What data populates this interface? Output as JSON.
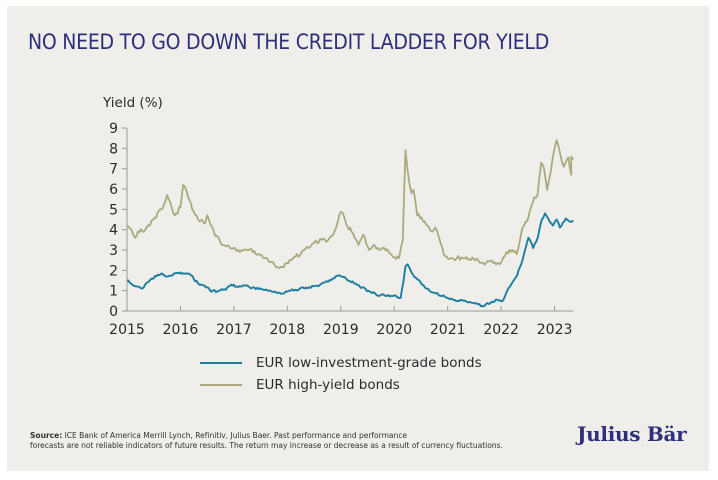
{
  "header": {
    "title": "NO NEED TO GO DOWN THE CREDIT LADDER FOR YIELD"
  },
  "footer": {
    "source_label": "Source:",
    "source_text_line1": "ICE Bank of America Merrill Lynch, Refinitiv, Julius Baer. Past performance and performance",
    "source_text_line2": "forecasts are not reliable indicators of future results. The return may increase or decrease as a result of currency fluctuations."
  },
  "brand": {
    "logo_text": "Julius Bär",
    "color": "#2e2f7c"
  },
  "chart_data": {
    "type": "line",
    "title": "NO NEED TO GO DOWN THE CREDIT LADDER FOR YIELD",
    "xlabel": "",
    "ylabel": "Yield (%)",
    "xlim": [
      2015,
      2023.35
    ],
    "ylim": [
      0,
      9
    ],
    "xticks": [
      2015,
      2016,
      2017,
      2018,
      2019,
      2020,
      2021,
      2022,
      2023
    ],
    "xtick_labels": [
      "2015",
      "2016",
      "2017",
      "2018",
      "2019",
      "2020",
      "2021",
      "2022",
      "2023"
    ],
    "yticks": [
      0,
      1,
      2,
      3,
      4,
      5,
      6,
      7,
      8,
      9
    ],
    "ytick_labels": [
      "0",
      "1",
      "2",
      "3",
      "4",
      "5",
      "6",
      "7",
      "8",
      "9"
    ],
    "grid": false,
    "legend_position": "bottom",
    "series": [
      {
        "name": "EUR low-investment-grade bonds",
        "color": "#1a7fa0",
        "points": [
          [
            2015.0,
            1.5
          ],
          [
            2015.1,
            1.3
          ],
          [
            2015.2,
            1.2
          ],
          [
            2015.28,
            1.1
          ],
          [
            2015.35,
            1.35
          ],
          [
            2015.47,
            1.6
          ],
          [
            2015.55,
            1.7
          ],
          [
            2015.65,
            1.85
          ],
          [
            2015.77,
            1.7
          ],
          [
            2015.88,
            1.85
          ],
          [
            2016.0,
            1.9
          ],
          [
            2016.1,
            1.85
          ],
          [
            2016.2,
            1.75
          ],
          [
            2016.33,
            1.35
          ],
          [
            2016.45,
            1.25
          ],
          [
            2016.58,
            0.95
          ],
          [
            2016.72,
            1.0
          ],
          [
            2016.85,
            1.05
          ],
          [
            2016.95,
            1.3
          ],
          [
            2017.05,
            1.2
          ],
          [
            2017.2,
            1.25
          ],
          [
            2017.35,
            1.15
          ],
          [
            2017.55,
            1.05
          ],
          [
            2017.75,
            0.95
          ],
          [
            2017.88,
            0.85
          ],
          [
            2018.0,
            0.95
          ],
          [
            2018.15,
            1.05
          ],
          [
            2018.35,
            1.15
          ],
          [
            2018.55,
            1.25
          ],
          [
            2018.7,
            1.4
          ],
          [
            2018.85,
            1.6
          ],
          [
            2018.98,
            1.75
          ],
          [
            2019.1,
            1.6
          ],
          [
            2019.25,
            1.35
          ],
          [
            2019.4,
            1.15
          ],
          [
            2019.55,
            0.95
          ],
          [
            2019.7,
            0.75
          ],
          [
            2019.8,
            0.8
          ],
          [
            2019.95,
            0.75
          ],
          [
            2020.05,
            0.7
          ],
          [
            2020.12,
            0.65
          ],
          [
            2020.17,
            1.4
          ],
          [
            2020.21,
            2.2
          ],
          [
            2020.25,
            2.3
          ],
          [
            2020.32,
            1.9
          ],
          [
            2020.4,
            1.65
          ],
          [
            2020.47,
            1.5
          ],
          [
            2020.6,
            1.1
          ],
          [
            2020.75,
            0.9
          ],
          [
            2020.95,
            0.7
          ],
          [
            2021.1,
            0.55
          ],
          [
            2021.3,
            0.5
          ],
          [
            2021.48,
            0.4
          ],
          [
            2021.65,
            0.25
          ],
          [
            2021.8,
            0.4
          ],
          [
            2021.93,
            0.55
          ],
          [
            2022.03,
            0.5
          ],
          [
            2022.12,
            1.05
          ],
          [
            2022.21,
            1.4
          ],
          [
            2022.3,
            1.75
          ],
          [
            2022.4,
            2.5
          ],
          [
            2022.51,
            3.6
          ],
          [
            2022.6,
            3.1
          ],
          [
            2022.69,
            3.65
          ],
          [
            2022.76,
            4.5
          ],
          [
            2022.82,
            4.8
          ],
          [
            2022.88,
            4.55
          ],
          [
            2022.97,
            4.2
          ],
          [
            2023.04,
            4.5
          ],
          [
            2023.1,
            4.1
          ],
          [
            2023.21,
            4.55
          ],
          [
            2023.28,
            4.4
          ],
          [
            2023.35,
            4.45
          ]
        ]
      },
      {
        "name": "EUR high-yield bonds",
        "color": "#a9ab7e",
        "points": [
          [
            2015.0,
            4.2
          ],
          [
            2015.08,
            4.0
          ],
          [
            2015.15,
            3.6
          ],
          [
            2015.2,
            3.9
          ],
          [
            2015.34,
            4.0
          ],
          [
            2015.52,
            4.6
          ],
          [
            2015.65,
            5.0
          ],
          [
            2015.75,
            5.7
          ],
          [
            2015.9,
            4.7
          ],
          [
            2016.0,
            5.1
          ],
          [
            2016.05,
            6.2
          ],
          [
            2016.12,
            5.85
          ],
          [
            2016.22,
            5.0
          ],
          [
            2016.33,
            4.5
          ],
          [
            2016.46,
            4.3
          ],
          [
            2016.5,
            4.7
          ],
          [
            2016.65,
            3.7
          ],
          [
            2016.8,
            3.25
          ],
          [
            2016.93,
            3.1
          ],
          [
            2017.11,
            2.9
          ],
          [
            2017.3,
            3.05
          ],
          [
            2017.49,
            2.75
          ],
          [
            2017.68,
            2.4
          ],
          [
            2017.85,
            2.1
          ],
          [
            2018.07,
            2.5
          ],
          [
            2018.26,
            2.85
          ],
          [
            2018.45,
            3.25
          ],
          [
            2018.64,
            3.5
          ],
          [
            2018.73,
            3.4
          ],
          [
            2018.88,
            3.9
          ],
          [
            2018.97,
            4.7
          ],
          [
            2019.03,
            4.85
          ],
          [
            2019.1,
            4.3
          ],
          [
            2019.2,
            3.9
          ],
          [
            2019.33,
            3.25
          ],
          [
            2019.42,
            3.75
          ],
          [
            2019.53,
            3.0
          ],
          [
            2019.61,
            3.25
          ],
          [
            2019.72,
            3.0
          ],
          [
            2019.81,
            3.1
          ],
          [
            2019.98,
            2.65
          ],
          [
            2020.09,
            2.6
          ],
          [
            2020.16,
            3.5
          ],
          [
            2020.21,
            7.9
          ],
          [
            2020.25,
            6.9
          ],
          [
            2020.32,
            5.8
          ],
          [
            2020.36,
            5.95
          ],
          [
            2020.43,
            4.7
          ],
          [
            2020.51,
            4.6
          ],
          [
            2020.62,
            4.2
          ],
          [
            2020.71,
            3.9
          ],
          [
            2020.77,
            4.1
          ],
          [
            2020.84,
            3.6
          ],
          [
            2020.93,
            2.75
          ],
          [
            2021.06,
            2.6
          ],
          [
            2021.17,
            2.6
          ],
          [
            2021.35,
            2.65
          ],
          [
            2021.57,
            2.5
          ],
          [
            2021.72,
            2.35
          ],
          [
            2021.88,
            2.4
          ],
          [
            2021.98,
            2.3
          ],
          [
            2022.1,
            2.9
          ],
          [
            2022.21,
            3.0
          ],
          [
            2022.29,
            2.8
          ],
          [
            2022.4,
            4.1
          ],
          [
            2022.51,
            4.6
          ],
          [
            2022.62,
            5.6
          ],
          [
            2022.68,
            5.7
          ],
          [
            2022.75,
            7.3
          ],
          [
            2022.8,
            7.05
          ],
          [
            2022.86,
            5.95
          ],
          [
            2022.93,
            6.9
          ],
          [
            2022.99,
            7.9
          ],
          [
            2023.04,
            8.4
          ],
          [
            2023.11,
            7.65
          ],
          [
            2023.17,
            7.1
          ],
          [
            2023.26,
            7.55
          ],
          [
            2023.31,
            6.7
          ],
          [
            2023.27,
            7.3
          ],
          [
            2023.31,
            7.6
          ],
          [
            2023.35,
            7.45
          ]
        ]
      }
    ]
  }
}
